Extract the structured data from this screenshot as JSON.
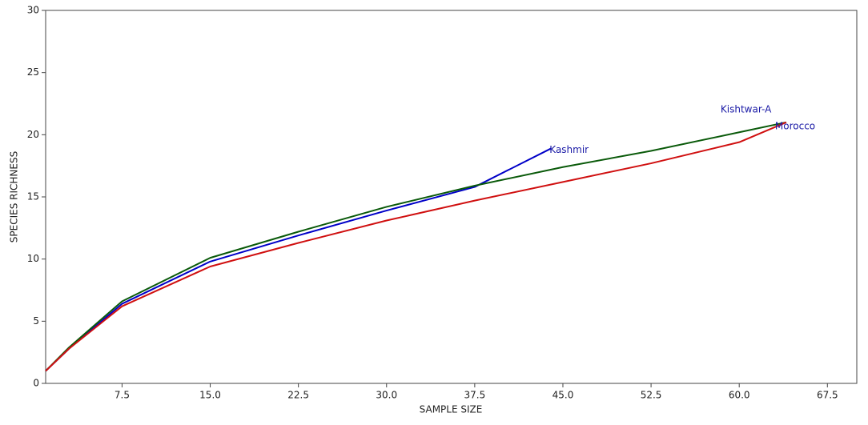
{
  "chart_data": {
    "type": "line",
    "x_label": "SAMPLE SIZE",
    "y_label": "SPECIES RICHNESS",
    "xlim": [
      1,
      70
    ],
    "ylim": [
      0,
      30
    ],
    "xticks": [
      7.5,
      {
        "value": 15,
        "label": "15.0"
      },
      22.5,
      {
        "value": 30,
        "label": "30.0"
      },
      37.5,
      {
        "value": 45,
        "label": "45.0"
      },
      52.5,
      {
        "value": 60,
        "label": "60.0"
      },
      67.5
    ],
    "yticks": [
      0,
      5,
      10,
      15,
      20,
      25,
      30
    ],
    "grid": false,
    "series": [
      {
        "name": "Kashmir",
        "color": "#0000c8",
        "x": [
          1,
          3,
          7.5,
          15,
          22.5,
          30,
          37.5,
          44
        ],
        "values": [
          1,
          2.8,
          6.4,
          9.8,
          11.9,
          13.9,
          15.8,
          18.9
        ]
      },
      {
        "name": "Kishtwar-A",
        "color": "#0a5a0a",
        "x": [
          1,
          3,
          7.5,
          15,
          22.5,
          30,
          37.5,
          45,
          52.5,
          60,
          64
        ],
        "values": [
          1,
          2.9,
          6.6,
          10.1,
          12.2,
          14.2,
          15.9,
          17.4,
          18.7,
          20.2,
          21.0
        ]
      },
      {
        "name": "Morocco",
        "color": "#d01010",
        "x": [
          1,
          3,
          7.5,
          15,
          22.5,
          30,
          37.5,
          45,
          52.5,
          60,
          64
        ],
        "values": [
          1,
          2.8,
          6.2,
          9.4,
          11.3,
          13.1,
          14.7,
          16.2,
          17.7,
          19.4,
          21.0
        ]
      }
    ]
  }
}
